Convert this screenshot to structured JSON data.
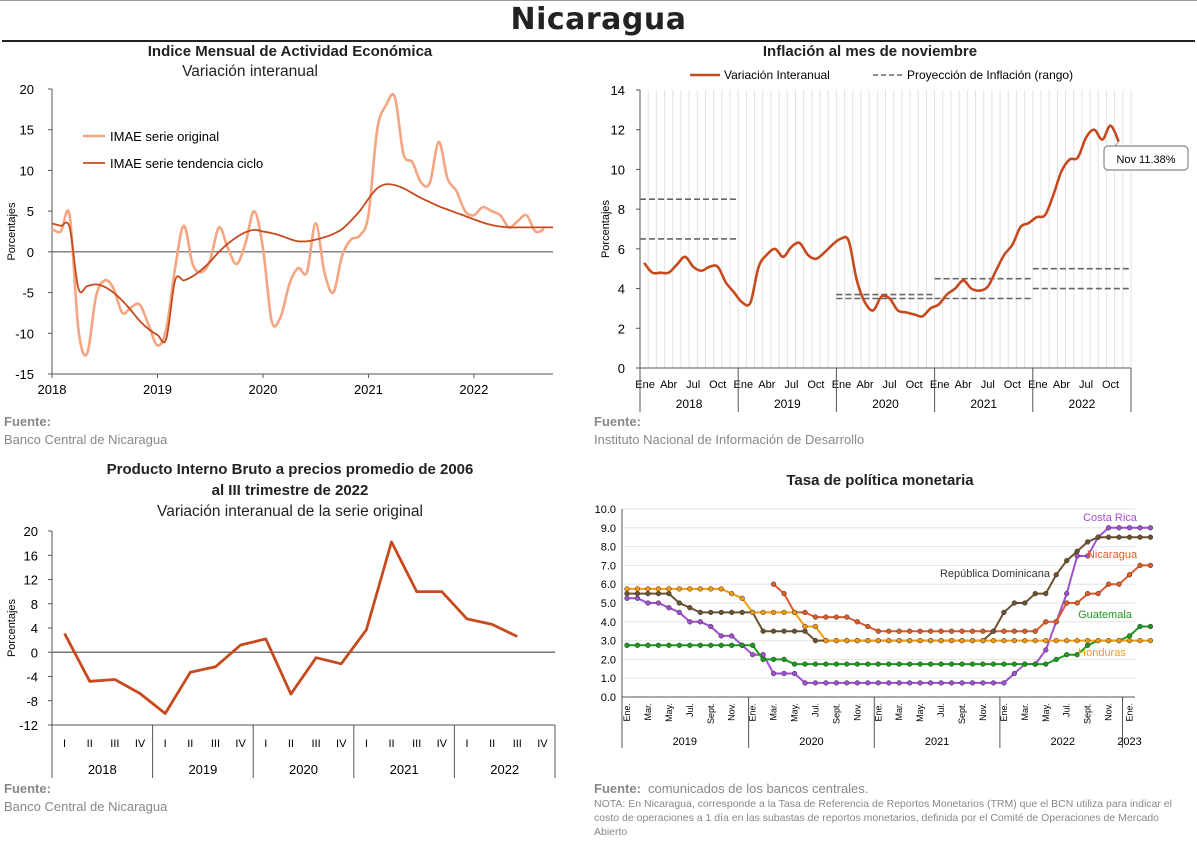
{
  "page": {
    "title": "Nicaragua"
  },
  "chart_data": [
    {
      "id": "imae",
      "type": "line",
      "title": "Indice Mensual de  Actividad Económica",
      "subtitle": "Variación interanual",
      "ylabel": "Porcentajes",
      "ylim": [
        -15,
        20
      ],
      "yticks": [
        -15,
        -10,
        -5,
        0,
        5,
        10,
        15,
        20
      ],
      "xlim": [
        2018,
        2022.75
      ],
      "xticks": [
        2018,
        2019,
        2020,
        2021,
        2022
      ],
      "legend_placement": "top-left",
      "series": [
        {
          "name": "IMAE serie original",
          "color": "#f4a581",
          "x": [
            2018.0,
            2018.083,
            2018.167,
            2018.25,
            2018.333,
            2018.417,
            2018.5,
            2018.583,
            2018.667,
            2018.75,
            2018.833,
            2018.917,
            2019.0,
            2019.083,
            2019.167,
            2019.25,
            2019.333,
            2019.417,
            2019.5,
            2019.583,
            2019.667,
            2019.75,
            2019.833,
            2019.917,
            2020.0,
            2020.083,
            2020.167,
            2020.25,
            2020.333,
            2020.417,
            2020.5,
            2020.583,
            2020.667,
            2020.75,
            2020.833,
            2020.917,
            2021.0,
            2021.083,
            2021.167,
            2021.25,
            2021.333,
            2021.417,
            2021.5,
            2021.583,
            2021.667,
            2021.75,
            2021.833,
            2021.917,
            2022.0,
            2022.083,
            2022.167,
            2022.25,
            2022.333,
            2022.417,
            2022.5,
            2022.583,
            2022.667
          ],
          "y": [
            2.8,
            2.5,
            4.5,
            -9.5,
            -12.5,
            -5.5,
            -3.5,
            -4.5,
            -7.5,
            -6.8,
            -6.5,
            -9.0,
            -11.5,
            -9.5,
            -2.0,
            3.2,
            -1.5,
            -2.5,
            -1.0,
            3.0,
            0.5,
            -1.5,
            1.0,
            5.0,
            0.5,
            -8.5,
            -8.0,
            -4.0,
            -2.0,
            -2.5,
            3.5,
            -2.5,
            -5.0,
            -0.5,
            1.5,
            2.0,
            4.5,
            15.0,
            18.0,
            19.0,
            12.0,
            11.0,
            8.5,
            8.5,
            13.5,
            9.0,
            7.5,
            5.0,
            4.5,
            5.5,
            5.0,
            4.5,
            3.0,
            3.8,
            4.5,
            2.5,
            2.8
          ]
        },
        {
          "name": "IMAE serie  tendencia ciclo",
          "color": "#c74a1e",
          "x": [
            2018.0,
            2018.083,
            2018.167,
            2018.25,
            2018.333,
            2018.417,
            2018.5,
            2018.583,
            2018.667,
            2018.75,
            2018.833,
            2018.917,
            2019.0,
            2019.083,
            2019.167,
            2019.25,
            2019.333,
            2019.417,
            2019.5,
            2019.583,
            2019.667,
            2019.75,
            2019.833,
            2019.917,
            2020.0,
            2020.083,
            2020.167,
            2020.25,
            2020.333,
            2020.417,
            2020.5,
            2020.583,
            2020.667,
            2020.75,
            2020.833,
            2020.917,
            2021.0,
            2021.083,
            2021.167,
            2021.25,
            2021.333,
            2021.417,
            2021.5,
            2021.583,
            2021.667,
            2021.75,
            2021.833,
            2021.917,
            2022.0,
            2022.083,
            2022.167,
            2022.25,
            2022.333,
            2022.417,
            2022.5,
            2022.583,
            2022.667,
            2022.75
          ],
          "y": [
            3.5,
            3.2,
            3.0,
            -4.5,
            -4.2,
            -4.0,
            -4.3,
            -5.0,
            -6.0,
            -7.2,
            -8.5,
            -9.5,
            -10.2,
            -10.7,
            -3.5,
            -3.5,
            -3.0,
            -2.2,
            -1.2,
            0.0,
            1.0,
            1.8,
            2.4,
            2.7,
            2.5,
            2.3,
            2.0,
            1.6,
            1.3,
            1.3,
            1.5,
            1.8,
            2.2,
            2.8,
            3.8,
            5.0,
            6.5,
            7.8,
            8.3,
            8.2,
            7.8,
            7.2,
            6.6,
            6.1,
            5.6,
            5.2,
            4.8,
            4.4,
            4.0,
            3.6,
            3.3,
            3.1,
            3.0,
            3.0,
            3.0,
            3.0,
            3.0,
            3.0
          ]
        }
      ],
      "source_label": "Fuente:",
      "source_text": "Banco Central de Nicaragua"
    },
    {
      "id": "inflacion",
      "type": "line",
      "title": "Inflación al mes de noviembre",
      "ylabel": "Porcentajes",
      "ylim": [
        0,
        14
      ],
      "yticks": [
        0,
        2,
        4,
        6,
        8,
        10,
        12,
        14
      ],
      "month_ticks": [
        "Ene",
        "Abr",
        "Jul",
        "Oct"
      ],
      "years": [
        "2018",
        "2019",
        "2020",
        "2021",
        "2022"
      ],
      "legend_placement": "top",
      "annotation": "Nov 11.38%",
      "series": [
        {
          "name": "Variación Interanual",
          "color": "#c74a1e",
          "y": [
            5.3,
            4.8,
            4.8,
            4.8,
            5.2,
            5.6,
            5.1,
            4.9,
            5.1,
            5.1,
            4.3,
            3.8,
            3.3,
            3.3,
            5.1,
            5.7,
            6.0,
            5.6,
            6.1,
            6.3,
            5.7,
            5.5,
            5.8,
            6.2,
            6.5,
            6.4,
            4.4,
            3.3,
            2.9,
            3.6,
            3.5,
            2.9,
            2.8,
            2.7,
            2.6,
            3.0,
            3.2,
            3.7,
            4.0,
            4.4,
            4.0,
            3.9,
            4.1,
            4.9,
            5.7,
            6.2,
            7.1,
            7.3,
            7.6,
            7.7,
            8.7,
            9.9,
            10.5,
            10.6,
            11.6,
            12.0,
            11.5,
            12.2,
            11.4
          ]
        },
        {
          "name": "Proyección de Inflación (rango)",
          "color": "#666666",
          "bands": [
            {
              "year_index": 0,
              "low": 6.5,
              "high": 8.5
            },
            {
              "year_index": 2,
              "low": 3.5,
              "high": 3.7
            },
            {
              "year_index": 3,
              "low": 3.5,
              "high": 4.5
            },
            {
              "year_index": 4,
              "low": 4.0,
              "high": 5.0
            }
          ]
        }
      ],
      "source_label": "Fuente:",
      "source_text": "Instituto Nacional de Información de  Desarrollo"
    },
    {
      "id": "pib",
      "type": "line",
      "title_line1": "Producto Interno Bruto a precios promedio de 2006",
      "title_line2": "al III trimestre de 2022",
      "subtitle": "Variación interanual de la serie original",
      "ylabel": "Porcentajes",
      "ylim": [
        -12,
        20
      ],
      "yticks": [
        -12,
        -8,
        -4,
        0,
        4,
        8,
        12,
        16,
        20
      ],
      "quarter_labels": [
        "I",
        "II",
        "III",
        "IV"
      ],
      "years": [
        "2018",
        "2019",
        "2020",
        "2021",
        "2022"
      ],
      "series": [
        {
          "name": "",
          "color": "#c74a1e",
          "y": [
            3.1,
            -4.8,
            -4.5,
            -6.8,
            -10.1,
            -3.3,
            -2.4,
            1.2,
            2.2,
            -6.9,
            -0.9,
            -1.9,
            3.7,
            18.2,
            10.0,
            10.0,
            5.5,
            4.6,
            2.6
          ]
        }
      ],
      "source_label": "Fuente:",
      "source_text": "Banco Central de Nicaragua"
    },
    {
      "id": "tpm",
      "type": "line",
      "title": "Tasa de política monetaria",
      "ylim": [
        0,
        10
      ],
      "yticks": [
        "0.0",
        "1.0",
        "2.0",
        "3.0",
        "4.0",
        "5.0",
        "6.0",
        "7.0",
        "8.0",
        "9.0",
        "10.0"
      ],
      "month_ticks": [
        "Ene.",
        "Mar.",
        "May.",
        "Jul.",
        "Sept.",
        "Nov."
      ],
      "years": [
        "2019",
        "2020",
        "2021",
        "2022",
        "2023"
      ],
      "final_tick": "Ene.",
      "series": [
        {
          "name": "Costa Rica",
          "color": "#a14fd1",
          "y": [
            5.25,
            5.25,
            5.0,
            5.0,
            4.75,
            4.5,
            4.0,
            4.0,
            3.75,
            3.25,
            3.25,
            2.75,
            2.25,
            2.25,
            1.25,
            1.25,
            1.25,
            0.75,
            0.75,
            0.75,
            0.75,
            0.75,
            0.75,
            0.75,
            0.75,
            0.75,
            0.75,
            0.75,
            0.75,
            0.75,
            0.75,
            0.75,
            0.75,
            0.75,
            0.75,
            0.75,
            0.75,
            1.25,
            1.75,
            1.75,
            2.5,
            4.0,
            5.5,
            7.5,
            7.5,
            8.5,
            9.0,
            9.0,
            9.0,
            9.0,
            9.0
          ]
        },
        {
          "name": "Nicaragua",
          "color": "#e05a2b",
          "y": [
            null,
            null,
            null,
            null,
            null,
            null,
            null,
            null,
            null,
            null,
            null,
            null,
            null,
            null,
            6.0,
            5.5,
            4.5,
            4.5,
            4.25,
            4.25,
            4.25,
            4.25,
            4.0,
            3.75,
            3.5,
            3.5,
            3.5,
            3.5,
            3.5,
            3.5,
            3.5,
            3.5,
            3.5,
            3.5,
            3.5,
            3.5,
            3.5,
            3.5,
            3.5,
            3.5,
            4.0,
            4.0,
            5.0,
            5.0,
            5.5,
            5.5,
            6.0,
            6.0,
            6.5,
            7.0,
            7.0
          ]
        },
        {
          "name": "República Dominicana",
          "color": "#6b5330",
          "y": [
            5.5,
            5.5,
            5.5,
            5.5,
            5.5,
            5.0,
            4.75,
            4.5,
            4.5,
            4.5,
            4.5,
            4.5,
            4.5,
            3.5,
            3.5,
            3.5,
            3.5,
            3.5,
            3.0,
            3.0,
            3.0,
            3.0,
            3.0,
            3.0,
            3.0,
            3.0,
            3.0,
            3.0,
            3.0,
            3.0,
            3.0,
            3.0,
            3.0,
            3.0,
            3.0,
            3.5,
            4.5,
            5.0,
            5.0,
            5.5,
            5.5,
            6.5,
            7.25,
            7.75,
            8.25,
            8.5,
            8.5,
            8.5,
            8.5,
            8.5,
            8.5
          ]
        },
        {
          "name": "Guatemala",
          "color": "#1c9a1c",
          "y": [
            2.75,
            2.75,
            2.75,
            2.75,
            2.75,
            2.75,
            2.75,
            2.75,
            2.75,
            2.75,
            2.75,
            2.75,
            2.75,
            2.0,
            2.0,
            2.0,
            1.75,
            1.75,
            1.75,
            1.75,
            1.75,
            1.75,
            1.75,
            1.75,
            1.75,
            1.75,
            1.75,
            1.75,
            1.75,
            1.75,
            1.75,
            1.75,
            1.75,
            1.75,
            1.75,
            1.75,
            1.75,
            1.75,
            1.75,
            1.75,
            1.75,
            2.0,
            2.25,
            2.25,
            2.75,
            3.0,
            3.0,
            3.0,
            3.25,
            3.75,
            3.75
          ]
        },
        {
          "name": "Honduras",
          "color": "#f39c12",
          "y": [
            5.75,
            5.75,
            5.75,
            5.75,
            5.75,
            5.75,
            5.75,
            5.75,
            5.75,
            5.75,
            5.5,
            5.25,
            4.5,
            4.5,
            4.5,
            4.5,
            4.5,
            3.75,
            3.75,
            3.0,
            3.0,
            3.0,
            3.0,
            3.0,
            3.0,
            3.0,
            3.0,
            3.0,
            3.0,
            3.0,
            3.0,
            3.0,
            3.0,
            3.0,
            3.0,
            3.0,
            3.0,
            3.0,
            3.0,
            3.0,
            3.0,
            3.0,
            3.0,
            3.0,
            3.0,
            3.0,
            3.0,
            3.0,
            3.0,
            3.0,
            3.0
          ]
        }
      ],
      "source_label": "Fuente:",
      "source_text": "comunicados de los bancos centrales.",
      "note": "NOTA: En Nicaragua, corresponde a la Tasa de Referencia de Reportos Monetarios (TRM) que el BCN utiliza para indicar el costo de operaciones a 1 día en las subastas de reportos monetarios, definida por el Comité de Operaciones de Mercado Abierto"
    }
  ]
}
